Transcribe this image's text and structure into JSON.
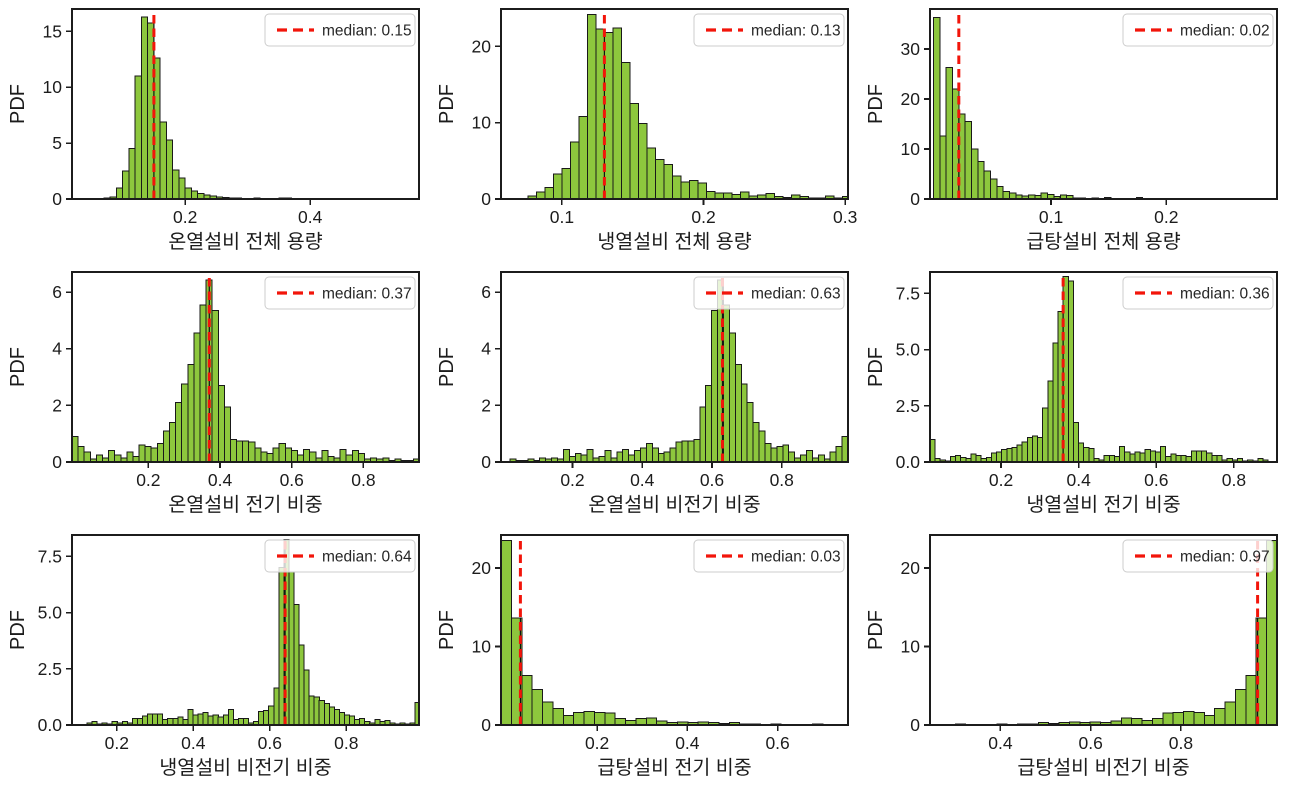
{
  "figure": {
    "ylabel": "PDF"
  },
  "style": {
    "background": "#ffffff",
    "bar_fill": "#8dc73d",
    "bar_edge": "#191919",
    "median_color": "#f2150a",
    "median_underlay": "#111111",
    "text_color": "#1c1c1c",
    "spine_color": "#1c1c1c",
    "legend_border": "#cccccc"
  },
  "chart_data": [
    {
      "type": "bar",
      "subtype": "histogram-pdf",
      "xlabel": "온열설비 전체 용량",
      "ylabel": "PDF",
      "median": 0.15,
      "legend_label": "median: 0.15",
      "legend_position": "upper right",
      "grid": false,
      "xlim": [
        0.019,
        0.574
      ],
      "ylim": [
        0,
        17
      ],
      "xticks": [
        0.2,
        0.4
      ],
      "xtick_labels": [
        "0.2",
        "0.4"
      ],
      "yticks": [
        0,
        5,
        10,
        15
      ],
      "ytick_labels": [
        "0",
        "5",
        "10",
        "15"
      ],
      "bin_start": 0.07,
      "bin_width": 0.01,
      "heights": [
        0.1,
        0.2,
        1.0,
        2.5,
        4.5,
        11.0,
        16.3,
        15.75,
        12.6,
        6.9,
        5.3,
        2.6,
        1.9,
        1.0,
        0.7,
        0.5,
        0.35,
        0.25,
        0.2,
        0.12,
        0.1,
        0.08,
        0.06,
        0.05,
        0.1,
        0.03,
        0.03,
        0.02,
        0.1,
        0.07
      ]
    },
    {
      "type": "bar",
      "subtype": "histogram-pdf",
      "xlabel": "냉열설비 전체 용량",
      "ylabel": "PDF",
      "median": 0.13,
      "legend_label": "median: 0.13",
      "legend_position": "upper right",
      "grid": false,
      "xlim": [
        0.057,
        0.302
      ],
      "ylim": [
        0,
        24.9
      ],
      "xticks": [
        0.1,
        0.2,
        0.3
      ],
      "xtick_labels": [
        "0.1",
        "0.2",
        "0.3"
      ],
      "yticks": [
        0,
        10,
        20
      ],
      "ytick_labels": [
        "0",
        "10",
        "20"
      ],
      "bin_start": 0.076,
      "bin_width": 0.006,
      "heights": [
        0.4,
        0.9,
        1.5,
        3.3,
        4.0,
        7.5,
        10.8,
        24.2,
        22.3,
        21.8,
        22.4,
        17.9,
        12.5,
        9.9,
        6.7,
        5.2,
        4.5,
        3.0,
        2.2,
        2.4,
        2.1,
        1.0,
        0.8,
        0.8,
        0.6,
        0.9,
        0.4,
        0.5,
        0.7,
        0.3,
        0.2,
        0.5,
        0.3,
        0.15,
        0.1,
        0.4,
        0.15,
        0.3,
        0.6
      ]
    },
    {
      "type": "bar",
      "subtype": "histogram-pdf",
      "xlabel": "급탕설비 전체 용량",
      "ylabel": "PDF",
      "median": 0.02,
      "legend_label": "median: 0.02",
      "legend_position": "upper right",
      "grid": false,
      "xlim": [
        -0.005,
        0.296
      ],
      "ylim": [
        0,
        38
      ],
      "xticks": [
        0.1,
        0.2
      ],
      "xtick_labels": [
        "0.1",
        "0.2"
      ],
      "yticks": [
        0,
        10,
        20,
        30
      ],
      "ytick_labels": [
        "0",
        "10",
        "20",
        "30"
      ],
      "bin_start": -0.002,
      "bin_width": 0.0055,
      "heights": [
        36.3,
        12.6,
        26.3,
        22.0,
        17.0,
        15.5,
        10.0,
        7.5,
        5.6,
        4.0,
        2.5,
        1.5,
        1.2,
        0.8,
        0.6,
        0.8,
        0.7,
        1.2,
        0.9,
        0.5,
        0.8,
        0.7,
        0.2,
        0.2,
        0.15,
        0.2,
        0.1,
        0.3,
        0.1,
        0.05,
        0.05,
        0.05,
        0.33,
        0.05,
        0.02,
        0.02,
        0.15,
        0.02
      ]
    },
    {
      "type": "bar",
      "subtype": "histogram-pdf",
      "xlabel": "온열설비 전기 비중",
      "ylabel": "PDF",
      "median": 0.37,
      "legend_label": "median: 0.37",
      "legend_position": "upper right",
      "grid": false,
      "xlim": [
        -0.013,
        0.955
      ],
      "ylim": [
        0,
        6.71
      ],
      "xticks": [
        0.2,
        0.4,
        0.6,
        0.8
      ],
      "xtick_labels": [
        "0.2",
        "0.4",
        "0.6",
        "0.8"
      ],
      "yticks": [
        0,
        2,
        4,
        6
      ],
      "ytick_labels": [
        "0",
        "2",
        "4",
        "6"
      ],
      "bin_start": -0.013,
      "bin_width": 0.017,
      "heights": [
        0.9,
        0.55,
        0.35,
        0.1,
        0.25,
        0.15,
        0.4,
        0.25,
        0.15,
        0.35,
        0.2,
        0.6,
        0.55,
        0.5,
        0.65,
        1.1,
        1.4,
        2.1,
        2.75,
        3.45,
        4.55,
        5.55,
        6.42,
        5.35,
        2.7,
        1.95,
        0.8,
        0.75,
        0.75,
        0.7,
        0.5,
        0.35,
        0.3,
        0.5,
        0.65,
        0.5,
        0.4,
        0.25,
        0.45,
        0.35,
        0.15,
        0.4,
        0.2,
        0.15,
        0.45,
        0.25,
        0.4,
        0.3,
        0.1,
        0.15,
        0.1,
        0.15,
        0.05,
        0.1,
        0.05,
        0.05,
        0.1
      ]
    },
    {
      "type": "bar",
      "subtype": "histogram-pdf",
      "xlabel": "온열설비 비전기 비중",
      "ylabel": "PDF",
      "median": 0.63,
      "legend_label": "median: 0.63",
      "legend_position": "upper right",
      "grid": false,
      "xlim": [
        -0.005,
        0.99
      ],
      "ylim": [
        0,
        6.71
      ],
      "xticks": [
        0.2,
        0.4,
        0.6,
        0.8
      ],
      "xtick_labels": [
        "0.2",
        "0.4",
        "0.6",
        "0.8"
      ],
      "yticks": [
        0,
        2,
        4,
        6
      ],
      "ytick_labels": [
        "0",
        "2",
        "4",
        "6"
      ],
      "bin_start": 0.021,
      "bin_width": 0.017,
      "heights": [
        0.1,
        0.05,
        0.05,
        0.1,
        0.05,
        0.15,
        0.1,
        0.15,
        0.1,
        0.45,
        0.2,
        0.3,
        0.25,
        0.45,
        0.15,
        0.2,
        0.4,
        0.15,
        0.35,
        0.45,
        0.25,
        0.4,
        0.5,
        0.65,
        0.5,
        0.3,
        0.35,
        0.5,
        0.7,
        0.75,
        0.75,
        0.8,
        1.95,
        2.7,
        5.35,
        6.42,
        5.55,
        4.55,
        3.45,
        2.75,
        2.1,
        1.4,
        1.1,
        0.65,
        0.5,
        0.55,
        0.6,
        0.35,
        0.15,
        0.25,
        0.4,
        0.15,
        0.25,
        0.1,
        0.35,
        0.55,
        0.9
      ]
    },
    {
      "type": "bar",
      "subtype": "histogram-pdf",
      "xlabel": "냉열설비 전기 비중",
      "ylabel": "PDF",
      "median": 0.36,
      "legend_label": "median: 0.36",
      "legend_position": "upper right",
      "grid": false,
      "xlim": [
        0.017,
        0.911
      ],
      "ylim": [
        0,
        8.45
      ],
      "xticks": [
        0.2,
        0.4,
        0.6,
        0.8
      ],
      "xtick_labels": [
        "0.2",
        "0.4",
        "0.6",
        "0.8"
      ],
      "yticks": [
        0,
        2.5,
        5,
        7.5
      ],
      "ytick_labels": [
        "0.0",
        "2.5",
        "5.0",
        "7.5"
      ],
      "bin_start": 0.017,
      "bin_width": 0.0132,
      "heights": [
        1.0,
        0.15,
        0.1,
        0.05,
        0.25,
        0.3,
        0.2,
        0.15,
        0.35,
        0.3,
        0.15,
        0.2,
        0.4,
        0.45,
        0.55,
        0.6,
        0.65,
        0.75,
        0.9,
        1.1,
        1.15,
        1.1,
        2.4,
        3.6,
        5.3,
        6.7,
        8.25,
        8.05,
        1.75,
        0.85,
        0.65,
        0.6,
        0.15,
        0.1,
        0.3,
        0.3,
        0.25,
        0.7,
        0.45,
        0.35,
        0.45,
        0.4,
        0.55,
        0.5,
        0.45,
        0.7,
        0.25,
        0.35,
        0.3,
        0.3,
        0.25,
        0.5,
        0.5,
        0.5,
        0.4,
        0.3,
        0.3,
        0.1,
        0.15,
        0.1,
        0.15,
        0.05,
        0.1,
        0.05,
        0.15,
        0.1
      ]
    },
    {
      "type": "bar",
      "subtype": "histogram-pdf",
      "xlabel": "냉열설비 비전기 비중",
      "ylabel": "PDF",
      "median": 0.64,
      "legend_label": "median: 0.64",
      "legend_position": "upper right",
      "grid": false,
      "xlim": [
        0.083,
        0.99
      ],
      "ylim": [
        0,
        8.45
      ],
      "xticks": [
        0.2,
        0.4,
        0.6,
        0.8
      ],
      "xtick_labels": [
        "0.2",
        "0.4",
        "0.6",
        "0.8"
      ],
      "yticks": [
        0,
        2.5,
        5,
        7.5
      ],
      "ytick_labels": [
        "0.0",
        "2.5",
        "5.0",
        "7.5"
      ],
      "bin_start": 0.122,
      "bin_width": 0.0132,
      "heights": [
        0.1,
        0.15,
        0.05,
        0.1,
        0.05,
        0.15,
        0.1,
        0.15,
        0.1,
        0.3,
        0.3,
        0.4,
        0.5,
        0.5,
        0.5,
        0.25,
        0.3,
        0.3,
        0.35,
        0.25,
        0.7,
        0.45,
        0.5,
        0.55,
        0.4,
        0.45,
        0.35,
        0.45,
        0.7,
        0.25,
        0.3,
        0.3,
        0.1,
        0.15,
        0.6,
        0.65,
        0.85,
        1.65,
        7.0,
        8.25,
        6.8,
        5.35,
        3.55,
        2.45,
        1.3,
        1.25,
        1.1,
        0.95,
        0.8,
        0.7,
        0.55,
        0.45,
        0.4,
        0.25,
        0.3,
        0.15,
        0.1,
        0.25,
        0.15,
        0.2,
        0.1,
        0.05,
        0.1,
        0.05,
        0.1,
        1.0
      ]
    },
    {
      "type": "bar",
      "subtype": "histogram-pdf",
      "xlabel": "급탕설비 전기 비중",
      "ylabel": "PDF",
      "median": 0.03,
      "legend_label": "median: 0.03",
      "legend_position": "upper right",
      "grid": false,
      "xlim": [
        -0.013,
        0.756
      ],
      "ylim": [
        0,
        24.2
      ],
      "xticks": [
        0.2,
        0.4,
        0.6
      ],
      "xtick_labels": [
        "0.2",
        "0.4",
        "0.6"
      ],
      "yticks": [
        0,
        10,
        20
      ],
      "ytick_labels": [
        "0",
        "10",
        "20"
      ],
      "bin_start": -0.013,
      "bin_width": 0.023,
      "heights": [
        23.5,
        13.6,
        6.3,
        4.5,
        2.9,
        2.1,
        1.2,
        1.6,
        1.7,
        1.6,
        1.5,
        0.8,
        0.6,
        0.8,
        0.9,
        0.5,
        0.3,
        0.4,
        0.3,
        0.4,
        0.3,
        0.2,
        0.3,
        0.1,
        0.1,
        0.05,
        0.1,
        0.05,
        0.02,
        0.02,
        0.1,
        0.02,
        0.02
      ]
    },
    {
      "type": "bar",
      "subtype": "histogram-pdf",
      "xlabel": "급탕설비 비전기 비중",
      "ylabel": "PDF",
      "median": 0.97,
      "legend_label": "median: 0.97",
      "legend_position": "upper right",
      "grid": false,
      "xlim": [
        0.244,
        1.013
      ],
      "ylim": [
        0,
        24.2
      ],
      "xticks": [
        0.4,
        0.6,
        0.8
      ],
      "xtick_labels": [
        "0.4",
        "0.6",
        "0.8"
      ],
      "yticks": [
        0,
        10,
        20
      ],
      "ytick_labels": [
        "0",
        "10",
        "20"
      ],
      "bin_start": 0.254,
      "bin_width": 0.023,
      "heights": [
        0.02,
        0.02,
        0.1,
        0.02,
        0.02,
        0.05,
        0.1,
        0.05,
        0.1,
        0.1,
        0.3,
        0.2,
        0.3,
        0.4,
        0.3,
        0.4,
        0.3,
        0.5,
        0.9,
        0.8,
        0.6,
        0.8,
        1.5,
        1.6,
        1.7,
        1.6,
        1.2,
        2.1,
        2.9,
        4.5,
        6.3,
        13.6,
        23.5
      ]
    }
  ]
}
